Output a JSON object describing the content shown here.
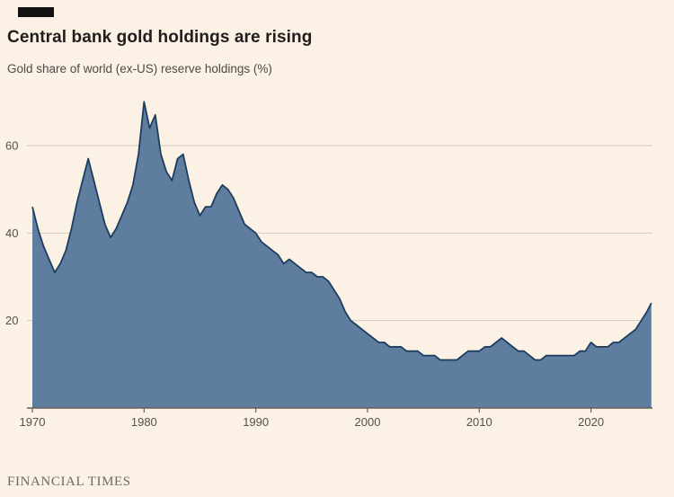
{
  "header": {
    "title": "Central bank gold holdings are rising",
    "subtitle": "Gold share of world (ex-US) reserve holdings (%)"
  },
  "footer": {
    "brand": "FINANCIAL TIMES"
  },
  "chart_data": {
    "type": "area",
    "title": "Central bank gold holdings are rising",
    "ylabel": "Gold share of world (ex-US) reserve holdings (%)",
    "xlabel": "",
    "x": [
      1970,
      1970.5,
      1971,
      1971.5,
      1972,
      1972.5,
      1973,
      1973.5,
      1974,
      1974.5,
      1975,
      1975.5,
      1976,
      1976.5,
      1977,
      1977.5,
      1978,
      1978.5,
      1979,
      1979.5,
      1980,
      1980.5,
      1981,
      1981.5,
      1982,
      1982.5,
      1983,
      1983.5,
      1984,
      1984.5,
      1985,
      1985.5,
      1986,
      1986.5,
      1987,
      1987.5,
      1988,
      1988.5,
      1989,
      1989.5,
      1990,
      1990.5,
      1991,
      1991.5,
      1992,
      1992.5,
      1993,
      1993.5,
      1994,
      1994.5,
      1995,
      1995.5,
      1996,
      1996.5,
      1997,
      1997.5,
      1998,
      1998.5,
      1999,
      1999.5,
      2000,
      2000.5,
      2001,
      2001.5,
      2002,
      2002.5,
      2003,
      2003.5,
      2004,
      2004.5,
      2005,
      2005.5,
      2006,
      2006.5,
      2007,
      2007.5,
      2008,
      2008.5,
      2009,
      2009.5,
      2010,
      2010.5,
      2011,
      2011.5,
      2012,
      2012.5,
      2013,
      2013.5,
      2014,
      2014.5,
      2015,
      2015.5,
      2016,
      2016.5,
      2017,
      2017.5,
      2018,
      2018.5,
      2019,
      2019.5,
      2020,
      2020.5,
      2021,
      2021.5,
      2022,
      2022.5,
      2023,
      2023.5,
      2024,
      2024.5,
      2025,
      2025.4
    ],
    "values": [
      46,
      41,
      37,
      34,
      31,
      33,
      36,
      41,
      47,
      52,
      57,
      52,
      47,
      42,
      39,
      41,
      44,
      47,
      51,
      58,
      70,
      64,
      67,
      58,
      54,
      52,
      57,
      58,
      52,
      47,
      44,
      46,
      46,
      49,
      51,
      50,
      48,
      45,
      42,
      41,
      40,
      38,
      37,
      36,
      35,
      33,
      34,
      33,
      32,
      31,
      31,
      30,
      30,
      29,
      27,
      25,
      22,
      20,
      19,
      18,
      17,
      16,
      15,
      15,
      14,
      14,
      14,
      13,
      13,
      13,
      12,
      12,
      12,
      11,
      11,
      11,
      11,
      12,
      13,
      13,
      13,
      14,
      14,
      15,
      16,
      15,
      14,
      13,
      13,
      12,
      11,
      11,
      12,
      12,
      12,
      12,
      12,
      12,
      13,
      13,
      15,
      14,
      14,
      14,
      15,
      15,
      16,
      17,
      18,
      20,
      22,
      24
    ],
    "xlim": [
      1970,
      2025.5
    ],
    "ylim": [
      0,
      72
    ],
    "x_ticks": [
      1970,
      1980,
      1990,
      2000,
      2010,
      2020
    ],
    "y_ticks": [
      20,
      40,
      60
    ],
    "grid": "horizontal",
    "legend": "none",
    "colors": {
      "background": "#fbf1e4",
      "area_fill": "#5f7d9e",
      "line": "#1d3d5f",
      "grid": "#d5cabb",
      "axis": "#66605c",
      "tick_label": "#56514d"
    }
  }
}
